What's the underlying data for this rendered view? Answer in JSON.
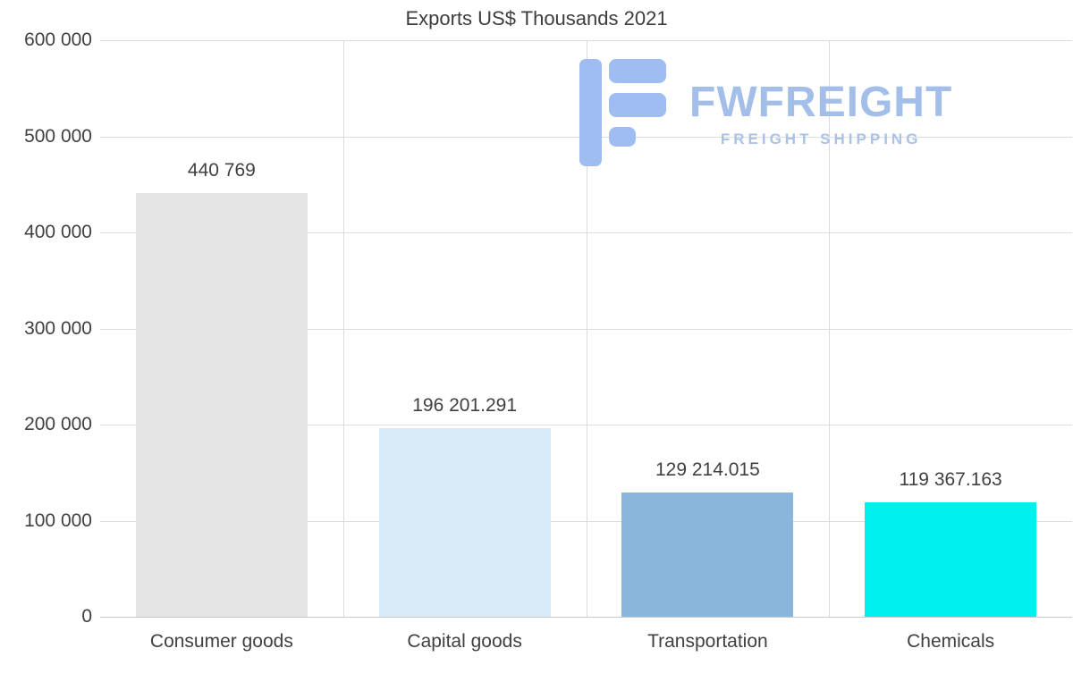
{
  "chart_data": {
    "type": "bar",
    "title": "Exports US$ Thousands 2021",
    "categories": [
      "Consumer goods",
      "Capital goods",
      "Transportation",
      "Chemicals"
    ],
    "values": [
      440769,
      196201.291,
      129214.015,
      119367.163
    ],
    "value_labels": [
      "440 769",
      "196 201.291",
      "129 214.015",
      "119 367.163"
    ],
    "bar_colors": [
      "#e5e5e5",
      "#d9e9f8",
      "#8ab6dc",
      "#00f0f0"
    ],
    "xlabel": "",
    "ylabel": "",
    "ylim": [
      0,
      600000
    ],
    "yticks": [
      {
        "value": 0,
        "label": "0"
      },
      {
        "value": 100000,
        "label": "100 000"
      },
      {
        "value": 200000,
        "label": "200 000"
      },
      {
        "value": 300000,
        "label": "300 000"
      },
      {
        "value": 400000,
        "label": "400 000"
      },
      {
        "value": 500000,
        "label": "500 000"
      },
      {
        "value": 600000,
        "label": "600 000"
      }
    ],
    "grid": true,
    "legend_position": "none"
  },
  "logo": {
    "brand": "FWFREIGHT",
    "subtitle": "FREIGHT SHIPPING",
    "color": "#a3bfe9"
  },
  "colors": {
    "text": "#404040",
    "gridline": "#dcdcdc",
    "background": "#ffffff"
  }
}
